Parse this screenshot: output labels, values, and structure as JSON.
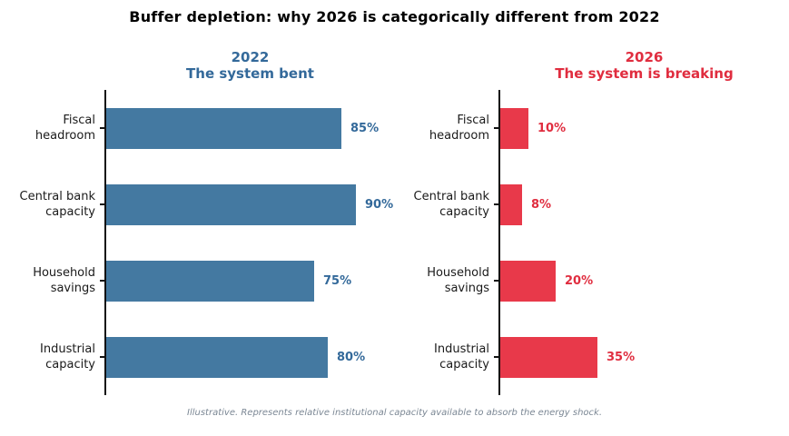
{
  "title": "Buffer depletion: why 2026 is categorically different from 2022",
  "footnote": "Illustrative. Represents relative institutional capacity available to absorb the energy shock.",
  "colors": {
    "blue_bar": "#4479A1",
    "blue_text": "#33699A",
    "red_bar": "#E8394A",
    "red_text": "#E02D3F",
    "axis": "#111111",
    "footnote_gray": "#7b8794"
  },
  "chart_data": [
    {
      "type": "bar",
      "orientation": "horizontal",
      "year": "2022",
      "subtitle": "The system bent",
      "categories": [
        "Fiscal headroom",
        "Central bank capacity",
        "Household savings",
        "Industrial capacity"
      ],
      "values": [
        85,
        90,
        75,
        80
      ],
      "xlim": [
        0,
        100
      ],
      "grid": false,
      "bar_color": "#4479A1",
      "text_color": "#33699A",
      "rows": [
        {
          "label1": "Fiscal",
          "label2": "headroom",
          "value": 85,
          "value_label": "85%"
        },
        {
          "label1": "Central bank",
          "label2": "capacity",
          "value": 90,
          "value_label": "90%"
        },
        {
          "label1": "Household",
          "label2": "savings",
          "value": 75,
          "value_label": "75%"
        },
        {
          "label1": "Industrial",
          "label2": "capacity",
          "value": 80,
          "value_label": "80%"
        }
      ]
    },
    {
      "type": "bar",
      "orientation": "horizontal",
      "year": "2026",
      "subtitle": "The system is breaking",
      "categories": [
        "Fiscal headroom",
        "Central bank capacity",
        "Household savings",
        "Industrial capacity"
      ],
      "values": [
        10,
        8,
        20,
        35
      ],
      "xlim": [
        0,
        100
      ],
      "grid": false,
      "bar_color": "#E8394A",
      "text_color": "#E02D3F",
      "rows": [
        {
          "label1": "Fiscal",
          "label2": "headroom",
          "value": 10,
          "value_label": "10%"
        },
        {
          "label1": "Central bank",
          "label2": "capacity",
          "value": 8,
          "value_label": "8%"
        },
        {
          "label1": "Household",
          "label2": "savings",
          "value": 20,
          "value_label": "20%"
        },
        {
          "label1": "Industrial",
          "label2": "capacity",
          "value": 35,
          "value_label": "35%"
        }
      ]
    }
  ]
}
